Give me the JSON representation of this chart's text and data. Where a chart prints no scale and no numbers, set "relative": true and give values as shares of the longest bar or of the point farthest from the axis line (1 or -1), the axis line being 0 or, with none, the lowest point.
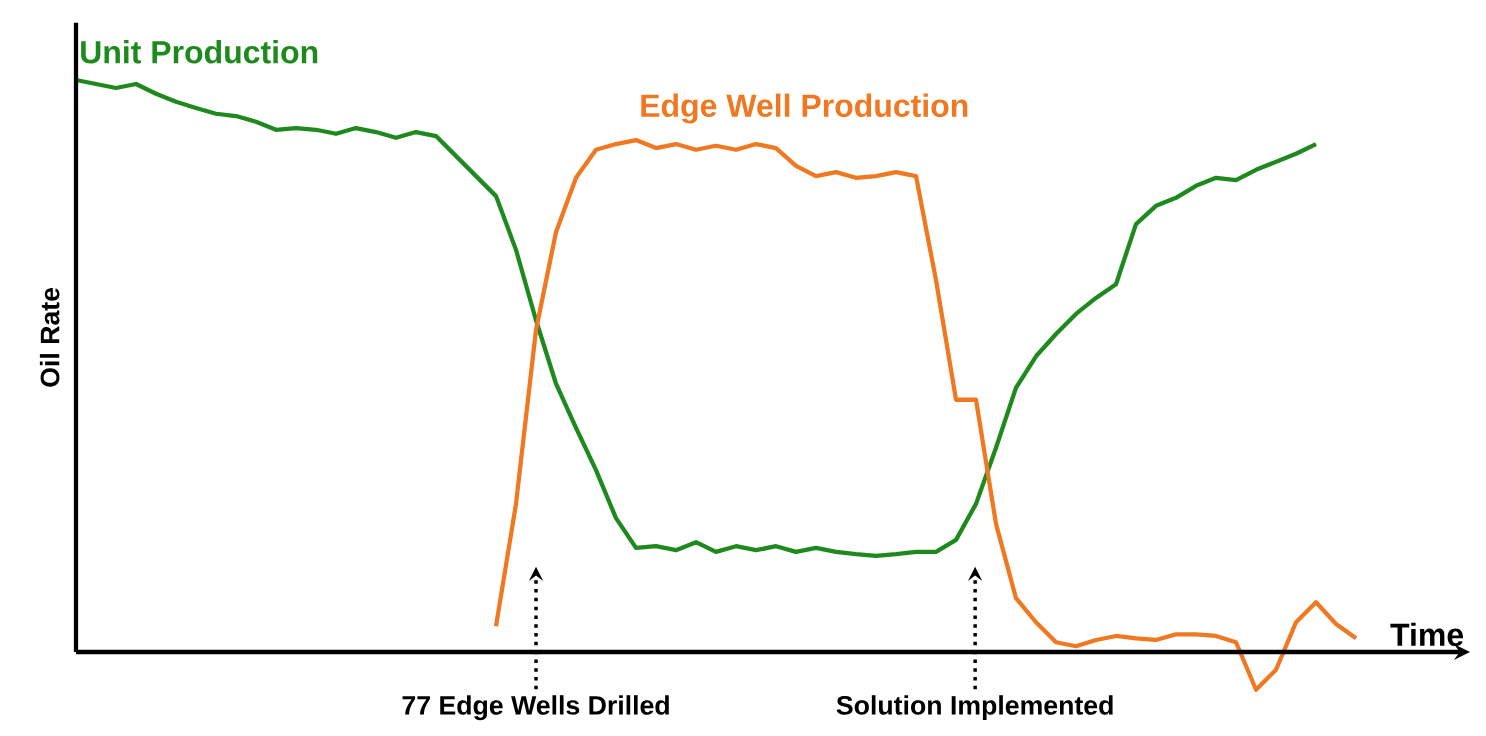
{
  "chart_data": {
    "type": "line",
    "relative": true,
    "xlabel": "Time",
    "ylabel": "Oil Rate",
    "line_style": "solid",
    "categories": [
      null,
      null,
      null,
      null,
      null,
      null,
      null,
      null,
      null,
      null,
      null,
      null,
      null,
      null,
      null,
      null,
      null,
      null,
      null,
      null,
      null,
      null,
      null,
      null,
      null,
      null,
      null,
      null,
      null,
      null,
      null,
      null,
      null,
      null,
      null,
      null,
      null,
      null,
      null,
      null,
      null,
      null,
      null,
      null,
      null,
      null,
      null,
      null,
      null,
      null,
      null,
      null,
      null,
      null,
      null,
      null,
      null,
      null,
      null,
      null,
      null,
      null,
      null,
      null,
      null,
      null,
      null
    ],
    "series": [
      {
        "name": "Unit Production",
        "color": "#1e8a1e",
        "values": [
          1.0,
          0.993,
          0.986,
          0.993,
          0.976,
          0.962,
          0.951,
          0.941,
          0.937,
          0.927,
          0.913,
          0.916,
          0.913,
          0.906,
          0.916,
          0.909,
          0.899,
          0.909,
          0.902,
          0.867,
          0.832,
          0.797,
          0.703,
          0.58,
          0.469,
          0.392,
          0.318,
          0.234,
          0.182,
          0.185,
          0.178,
          0.192,
          0.175,
          0.185,
          0.178,
          0.185,
          0.175,
          0.182,
          0.175,
          0.171,
          0.168,
          0.171,
          0.175,
          0.175,
          0.196,
          0.259,
          0.357,
          0.462,
          0.517,
          0.556,
          0.591,
          0.619,
          0.643,
          0.748,
          0.78,
          0.794,
          0.815,
          0.829,
          0.825,
          0.843,
          0.857,
          0.871,
          0.888,
          null,
          null,
          null,
          null
        ]
      },
      {
        "name": "Edge Well Production",
        "color": "#f07820",
        "values": [
          null,
          null,
          null,
          null,
          null,
          null,
          null,
          null,
          null,
          null,
          null,
          null,
          null,
          null,
          null,
          null,
          null,
          null,
          null,
          null,
          null,
          0.045,
          0.259,
          0.563,
          0.734,
          0.829,
          0.878,
          0.888,
          0.895,
          0.881,
          0.888,
          0.878,
          0.885,
          0.878,
          0.888,
          0.881,
          0.85,
          0.832,
          0.839,
          0.829,
          0.832,
          0.839,
          0.832,
          0.65,
          0.441,
          0.441,
          0.224,
          0.094,
          0.052,
          0.017,
          0.01,
          0.021,
          0.028,
          0.024,
          0.021,
          0.031,
          0.031,
          0.028,
          0.017,
          -0.066,
          -0.031,
          0.052,
          0.087,
          0.049,
          0.024,
          null,
          null
        ]
      }
    ],
    "annotations": [
      "77 Edge Wells Drilled",
      "Solution Implemented"
    ]
  }
}
